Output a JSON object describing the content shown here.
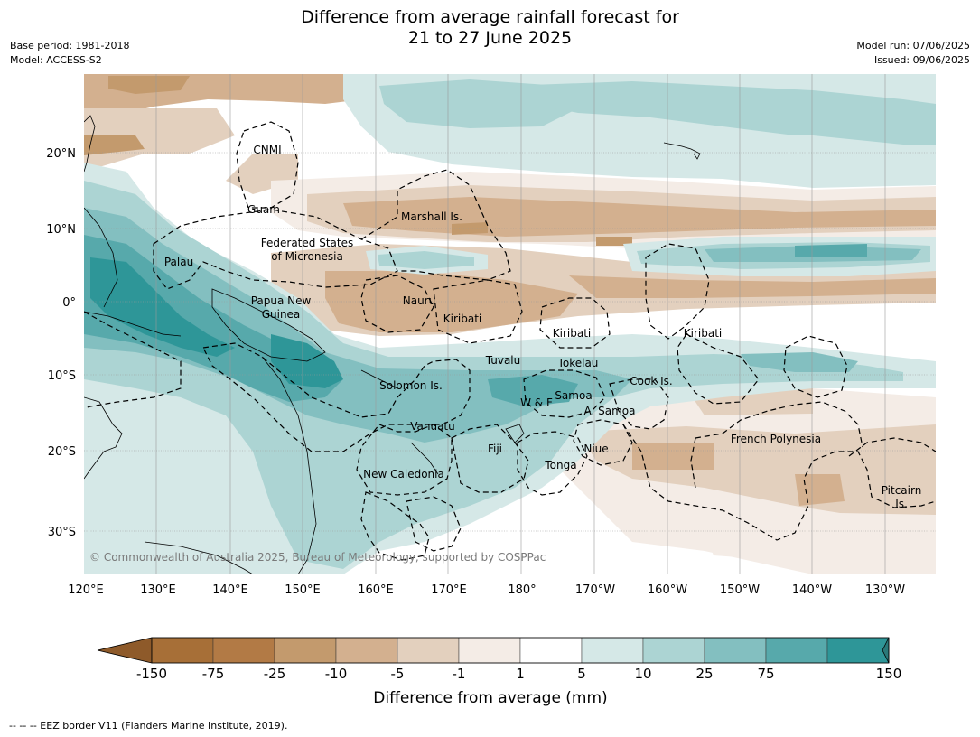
{
  "header": {
    "title_line1": "Difference from average rainfall forecast for",
    "title_line2": "21 to 27 June 2025",
    "base_period": "Base period: 1981-2018",
    "model": "Model: ACCESS-S2",
    "model_run": "Model run: 07/06/2025",
    "issued": "Issued: 09/06/2025"
  },
  "map": {
    "lat_labels": [
      "20°N",
      "10°N",
      "0°",
      "10°S",
      "20°S",
      "30°S"
    ],
    "lon_labels": [
      "120°E",
      "130°E",
      "140°E",
      "150°E",
      "160°E",
      "170°E",
      "180°",
      "170°W",
      "160°W",
      "150°W",
      "140°W",
      "130°W"
    ],
    "copyright": "© Commonwealth of Australia 2025, Bureau of Meteorology, supported by COSPPac",
    "places": {
      "cnmi": "CNMI",
      "guam": "Guam",
      "marshall": "Marshall Is.",
      "fsm1": "Federated States",
      "fsm2": "of Micronesia",
      "palau": "Palau",
      "png1": "Papua New",
      "png2": "Guinea",
      "nauru": "Nauru",
      "kiribati_w": "Kiribati",
      "kiribati_c": "Kiribati",
      "kiribati_e": "Kiribati",
      "tuvalu": "Tuvalu",
      "tokelau": "Tokelau",
      "solomon": "Solomon Is.",
      "samoa": "Samoa",
      "wf": "W & F",
      "asamoa": "A. Samoa",
      "cook": "Cook Is.",
      "vanuatu": "Vanuatu",
      "fiji": "Fiji",
      "niue": "Niue",
      "tonga": "Tonga",
      "newcal": "New Caledonia",
      "frpoly": "French Polynesia",
      "pitcairn1": "Pitcairn",
      "pitcairn2": "Is."
    }
  },
  "colorbar": {
    "labels": [
      "-150",
      "-75",
      "-25",
      "-10",
      "-5",
      "-1",
      "1",
      "5",
      "10",
      "25",
      "75",
      "150"
    ],
    "colors": [
      "#a76f37",
      "#b27a45",
      "#c39a6d",
      "#d3b08f",
      "#e3d0be",
      "#f4ece6",
      "#ffffff",
      "#d5e8e7",
      "#acd4d3",
      "#83bfc0",
      "#57a9ab",
      "#2e9698"
    ],
    "under_color": "#8e5a2a",
    "over_color": "#2a7878",
    "title": "Difference from average (mm)"
  },
  "footer": {
    "text": "--  --  -- EEZ border V11 (Flanders Marine Institute, 2019)."
  }
}
